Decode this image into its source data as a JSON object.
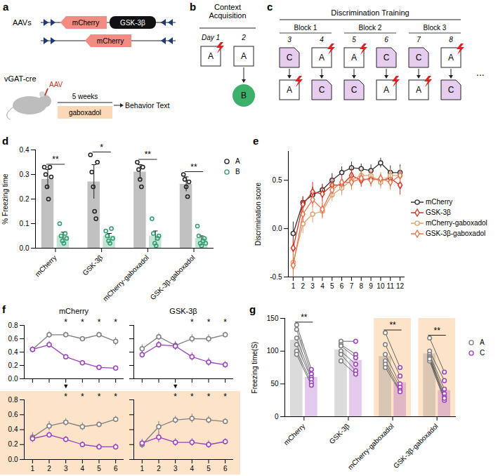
{
  "diagrams": {
    "a": {
      "panel": "a",
      "constructs_label": "AAVs",
      "constructs": [
        [
          "mCherry",
          "GSK-3β"
        ],
        [
          "mCherry"
        ]
      ],
      "mouse": "vGAT-cre",
      "injection": "AAV",
      "duration": "5 weeks",
      "treatment": "gaboxadol",
      "outcome": "Behavior Text"
    },
    "b": {
      "panel": "b",
      "title": "Context Acquisition",
      "days": [
        "Day 1",
        "2"
      ],
      "contexts": [
        "A",
        "A"
      ],
      "shock": [
        true,
        false
      ],
      "test": "B"
    },
    "c": {
      "panel": "c",
      "title": "Discrimination Training",
      "blocks": [
        "Block 1",
        "Block 2",
        "Block 3"
      ],
      "days": [
        "3",
        "4",
        "5",
        "6",
        "7",
        "8"
      ],
      "first": [
        "C",
        "A",
        "A",
        "C",
        "C",
        "A"
      ],
      "first_shock": [
        false,
        true,
        true,
        false,
        false,
        true
      ],
      "second": [
        "A",
        "C",
        "C",
        "A",
        "A",
        "C"
      ],
      "second_shock": [
        true,
        false,
        false,
        true,
        true,
        false
      ],
      "more": "..."
    }
  },
  "chart_data": [
    {
      "panel": "d",
      "type": "bar",
      "ylabel": "% Freezing time",
      "legend": "right",
      "categories": [
        "mCherry",
        "GSK-3β",
        "mCherry-gaboxadol",
        "GSK-3β-gaboxadol"
      ],
      "ylim": [
        0,
        0.4
      ],
      "yticks": [
        {
          "value": 0,
          "label": "0.0"
        },
        0.1,
        0.2,
        0.3,
        0.4
      ],
      "significance": [
        "**",
        "*",
        "**",
        "**"
      ],
      "series": [
        {
          "name": "A",
          "color": "#222222",
          "marker": "circle",
          "values": [
            0.28,
            0.27,
            0.31,
            0.26
          ],
          "errors": [
            0.04,
            0.07,
            0.03,
            0.03
          ],
          "points": [
            [
              0.33,
              0.3,
              0.25,
              0.2,
              0.33,
              0.29
            ],
            [
              0.38,
              0.31,
              0.25,
              0.15,
              0.12,
              0.35
            ],
            [
              0.35,
              0.32,
              0.28,
              0.25,
              0.33
            ],
            [
              0.3,
              0.28,
              0.25,
              0.21,
              0.27
            ]
          ]
        },
        {
          "name": "B",
          "color": "#2e9e6e",
          "marker": "circle",
          "values": [
            0.05,
            0.05,
            0.05,
            0.04
          ],
          "errors": [
            0.015,
            0.01,
            0.02,
            0.01
          ],
          "points": [
            [
              0.1,
              0.05,
              0.03,
              0.02,
              0.06,
              0.04
            ],
            [
              0.07,
              0.05,
              0.03,
              0.02,
              0.08,
              0.04
            ],
            [
              0.12,
              0.06,
              0.02,
              0.01,
              0.04,
              0.05
            ],
            [
              0.09,
              0.05,
              0.02,
              0.01,
              0.03,
              0.04,
              0.02
            ]
          ]
        }
      ]
    },
    {
      "panel": "e",
      "type": "line",
      "ylabel": "Discrimination score",
      "legend": "right",
      "x": [
        1,
        2,
        3,
        4,
        5,
        6,
        7,
        8,
        9,
        10,
        11,
        12
      ],
      "xlim": [
        0.5,
        12.5
      ],
      "xticks": [
        1,
        2,
        3,
        4,
        5,
        6,
        7,
        8,
        9,
        10,
        11,
        12
      ],
      "ylim": [
        -0.5,
        0.8
      ],
      "yticks": [
        -0.5,
        {
          "value": 0,
          "label": "0.0"
        },
        0.5
      ],
      "series": [
        {
          "name": "mCherry",
          "color": "#333333",
          "marker": "circle",
          "values": [
            -0.05,
            0.27,
            0.35,
            0.4,
            0.5,
            0.58,
            0.63,
            0.62,
            0.6,
            0.68,
            0.58,
            0.58
          ],
          "errors": [
            0.12,
            0.06,
            0.08,
            0.06,
            0.07,
            0.06,
            0.06,
            0.05,
            0.06,
            0.05,
            0.07,
            0.08
          ]
        },
        {
          "name": "GSK-3β",
          "color": "#d7301f",
          "marker": "diamond",
          "values": [
            -0.2,
            0.25,
            0.38,
            0.36,
            0.45,
            0.45,
            0.55,
            0.5,
            0.52,
            0.5,
            0.52,
            0.45
          ],
          "errors": [
            0.1,
            0.08,
            0.1,
            0.08,
            0.08,
            0.09,
            0.08,
            0.07,
            0.07,
            0.06,
            0.07,
            0.1
          ]
        },
        {
          "name": "mCherry-gaboxadol",
          "color": "#e0a370",
          "marker": "circle",
          "values": [
            -0.35,
            0.05,
            0.15,
            0.18,
            0.35,
            0.42,
            0.5,
            0.55,
            0.55,
            0.48,
            0.55,
            0.55
          ],
          "errors": [
            0.1,
            0.1,
            0.09,
            0.08,
            0.07,
            0.08,
            0.07,
            0.07,
            0.06,
            0.07,
            0.07,
            0.08
          ]
        },
        {
          "name": "GSK-3β-gaboxadol",
          "color": "#e8734a",
          "marker": "diamond",
          "values": [
            -0.38,
            0.15,
            0.3,
            0.2,
            0.4,
            0.48,
            0.48,
            0.52,
            0.5,
            0.52,
            0.48,
            0.55
          ],
          "errors": [
            0.12,
            0.09,
            0.08,
            0.09,
            0.08,
            0.07,
            0.08,
            0.07,
            0.07,
            0.06,
            0.08,
            0.09
          ]
        }
      ]
    },
    {
      "panel": "f",
      "type": "line",
      "title": "mCherry",
      "tick_labels": "y",
      "x": [
        1,
        2,
        3,
        4,
        5,
        6
      ],
      "xlim": [
        0.5,
        6.5
      ],
      "xticks": [
        1,
        2,
        3,
        4,
        5,
        6
      ],
      "ylim": [
        0,
        0.8
      ],
      "yticks": [
        {
          "value": 0,
          "label": "0.0"
        },
        0.2,
        0.4,
        0.6,
        0.8
      ],
      "annotations": [
        {
          "x": 3,
          "text": "*"
        },
        {
          "x": 4,
          "text": "*"
        },
        {
          "x": 5,
          "text": "*"
        },
        {
          "x": 6,
          "text": "*"
        }
      ],
      "switch": {
        "x": 3,
        "text": "▼"
      },
      "series": [
        {
          "name": "A",
          "color": "#7f7f7f",
          "marker": "circle",
          "values": [
            0.44,
            0.66,
            0.66,
            0.6,
            0.66,
            0.56
          ],
          "errors": [
            0.04,
            0.05,
            0.04,
            0.03,
            0.04,
            0.06
          ]
        },
        {
          "name": "C",
          "color": "#9b3fbf",
          "marker": "circle",
          "values": [
            0.44,
            0.51,
            0.33,
            0.24,
            0.17,
            0.16
          ],
          "errors": [
            0.04,
            0.05,
            0.03,
            0.03,
            0.03,
            0.03
          ]
        }
      ]
    },
    {
      "panel": "f",
      "type": "line",
      "title": "GSK-3β",
      "tick_labels": false,
      "x": [
        1,
        2,
        3,
        4,
        5,
        6
      ],
      "xlim": [
        0.5,
        6.5
      ],
      "xticks": [
        1,
        2,
        3,
        4,
        5,
        6
      ],
      "ylim": [
        0,
        0.8
      ],
      "yticks": [
        {
          "value": 0,
          "label": "0.0"
        },
        0.2,
        0.4,
        0.6,
        0.8
      ],
      "annotations": [
        {
          "x": 4,
          "text": "*"
        },
        {
          "x": 5,
          "text": "*"
        },
        {
          "x": 6,
          "text": "*"
        }
      ],
      "switch": {
        "x": 3,
        "text": "▼"
      },
      "series": [
        {
          "name": "A",
          "color": "#7f7f7f",
          "marker": "circle",
          "values": [
            0.45,
            0.63,
            0.5,
            0.6,
            0.6,
            0.66
          ],
          "errors": [
            0.06,
            0.05,
            0.06,
            0.06,
            0.06,
            0.04
          ]
        },
        {
          "name": "C",
          "color": "#9b3fbf",
          "marker": "circle",
          "values": [
            0.36,
            0.51,
            0.49,
            0.33,
            0.25,
            0.21
          ],
          "errors": [
            0.05,
            0.05,
            0.06,
            0.06,
            0.06,
            0.05
          ]
        }
      ]
    },
    {
      "panel": "f",
      "type": "line",
      "title": null,
      "tick_labels": true,
      "x": [
        1,
        2,
        3,
        4,
        5,
        6
      ],
      "xlim": [
        0.5,
        6.5
      ],
      "xticks": [
        1,
        2,
        3,
        4,
        5,
        6
      ],
      "ylim": [
        0,
        0.8
      ],
      "yticks": [
        {
          "value": 0,
          "label": "0.0"
        },
        0.2,
        0.4,
        0.6,
        0.8
      ],
      "annotations": [
        {
          "x": 3,
          "text": "*"
        },
        {
          "x": 4,
          "text": "*"
        },
        {
          "x": 5,
          "text": "*"
        },
        {
          "x": 6,
          "text": "*"
        }
      ],
      "series": [
        {
          "name": "A",
          "color": "#7f7f7f",
          "marker": "circle",
          "values": [
            0.3,
            0.45,
            0.5,
            0.44,
            0.47,
            0.54
          ],
          "errors": [
            0.06,
            0.06,
            0.05,
            0.05,
            0.04,
            0.04
          ]
        },
        {
          "name": "C",
          "color": "#9b3fbf",
          "marker": "circle",
          "values": [
            0.28,
            0.33,
            0.27,
            0.2,
            0.17,
            0.17
          ],
          "errors": [
            0.05,
            0.04,
            0.04,
            0.04,
            0.04,
            0.04
          ]
        }
      ]
    },
    {
      "panel": "f",
      "type": "line",
      "title": null,
      "tick_labels": "x",
      "x": [
        1,
        2,
        3,
        4,
        5,
        6
      ],
      "xlim": [
        0.5,
        6.5
      ],
      "xticks": [
        1,
        2,
        3,
        4,
        5,
        6
      ],
      "ylim": [
        0,
        0.8
      ],
      "yticks": [
        {
          "value": 0,
          "label": "0.0"
        },
        0.2,
        0.4,
        0.6,
        0.8
      ],
      "annotations": [
        {
          "x": 3,
          "text": "*"
        },
        {
          "x": 4,
          "text": "*"
        },
        {
          "x": 5,
          "text": "*"
        },
        {
          "x": 6,
          "text": "*"
        }
      ],
      "series": [
        {
          "name": "A",
          "color": "#7f7f7f",
          "marker": "circle",
          "values": [
            0.2,
            0.44,
            0.53,
            0.55,
            0.53,
            0.51
          ],
          "errors": [
            0.05,
            0.07,
            0.05,
            0.06,
            0.05,
            0.04
          ]
        },
        {
          "name": "C",
          "color": "#9b3fbf",
          "marker": "circle",
          "values": [
            0.22,
            0.3,
            0.23,
            0.23,
            0.2,
            0.24
          ],
          "errors": [
            0.05,
            0.07,
            0.05,
            0.05,
            0.05,
            0.04
          ]
        }
      ]
    },
    {
      "panel": "g",
      "type": "bar",
      "ylabel": "Freezing time(S)",
      "legend": "right",
      "categories": [
        "mCherry",
        "GSK-3β",
        "mCherry-gaboxadol",
        "GSK-3β-gaboxadol"
      ],
      "ylim": [
        0,
        150
      ],
      "yticks": [
        0,
        50,
        100,
        150
      ],
      "significance": [
        "**",
        null,
        "**",
        "**"
      ],
      "series": [
        {
          "name": "A",
          "color": "#7f7f7f",
          "marker": "circle",
          "values": [
            117,
            102,
            92,
            96
          ],
          "points": [
            [
              140,
              133,
              120,
              110,
              100,
              95
            ],
            [
              115,
              110,
              108,
              100,
              95,
              85
            ],
            [
              128,
              110,
              95,
              85,
              80,
              75
            ],
            [
              120,
              100,
              95,
              92,
              90,
              85,
              88
            ]
          ]
        },
        {
          "name": "C",
          "color": "#9b3fbf",
          "marker": "circle",
          "values": [
            60,
            86,
            52,
            40
          ],
          "points": [
            [
              72,
              65,
              60,
              57,
              52,
              48
            ],
            [
              115,
              95,
              90,
              80,
              70,
              65
            ],
            [
              75,
              62,
              50,
              45,
              40,
              38
            ],
            [
              68,
              55,
              42,
              35,
              30,
              25,
              28
            ]
          ]
        }
      ]
    }
  ]
}
